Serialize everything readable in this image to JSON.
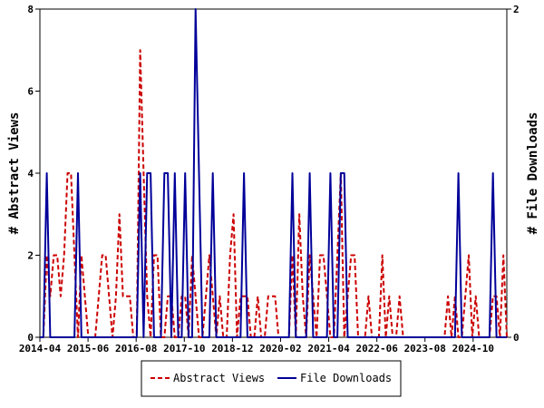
{
  "chart_data": {
    "type": "line",
    "xlabel": "",
    "ylabel_left": "# Abstract Views",
    "ylabel_right": "# File Downloads",
    "x_ticks": [
      "2014-04",
      "2015-06",
      "2016-08",
      "2017-10",
      "2018-12",
      "2020-02",
      "2021-04",
      "2022-06",
      "2023-08",
      "2024-10"
    ],
    "y_left": {
      "min": 0,
      "max": 8,
      "ticks": [
        "0",
        "2",
        "4",
        "6",
        "8"
      ]
    },
    "y_right": {
      "min": 0,
      "max": 2,
      "ticks": [
        "0",
        "2"
      ]
    },
    "x_range_months": [
      0,
      135
    ],
    "legend_position": "bottom-center",
    "grid": false,
    "series": [
      {
        "name": "Abstract Views",
        "axis": "left",
        "color": "#cc0000",
        "style": "dashed",
        "x": [
          0,
          1,
          2,
          3,
          4,
          5,
          6,
          7,
          8,
          9,
          10,
          11,
          12,
          13,
          14,
          15,
          16,
          17,
          18,
          19,
          20,
          21,
          22,
          23,
          24,
          25,
          26,
          27,
          28,
          29,
          30,
          31,
          32,
          33,
          34,
          35,
          36,
          37,
          38,
          39,
          40,
          41,
          42,
          43,
          44,
          45,
          46,
          47,
          48,
          49,
          50,
          51,
          52,
          53,
          54,
          55,
          56,
          57,
          58,
          59,
          60,
          61,
          62,
          63,
          64,
          65,
          66,
          67,
          68,
          69,
          70,
          71,
          72,
          73,
          74,
          75,
          76,
          77,
          78,
          79,
          80,
          81,
          82,
          83,
          84,
          85,
          86,
          87,
          88,
          89,
          90,
          91,
          92,
          93,
          94,
          95,
          96,
          97,
          98,
          99,
          100,
          101,
          102,
          103,
          104,
          105,
          106,
          107,
          108,
          109,
          110,
          111,
          112,
          113,
          114,
          115,
          116,
          117,
          118,
          119,
          120,
          121,
          122,
          123,
          124,
          125,
          126,
          127,
          128,
          129,
          130,
          131,
          132,
          133,
          134,
          135
        ],
        "values": [
          0,
          0,
          2,
          1,
          2,
          2,
          1,
          2,
          4,
          4,
          2,
          0,
          2,
          1,
          0,
          0,
          0,
          1,
          2,
          2,
          1,
          0,
          1,
          3,
          1,
          1,
          1,
          0,
          0,
          7,
          4,
          1,
          0,
          2,
          2,
          0,
          0,
          1,
          1,
          0,
          0,
          1,
          1,
          0,
          2,
          1,
          0,
          0,
          1,
          2,
          1,
          0,
          1,
          0,
          0,
          2,
          3,
          0,
          1,
          1,
          1,
          0,
          0,
          1,
          0,
          0,
          1,
          1,
          1,
          0,
          0,
          0,
          0,
          2,
          0,
          3,
          1,
          0,
          2,
          1,
          0,
          2,
          2,
          1,
          0,
          0,
          2,
          4,
          0,
          1,
          2,
          2,
          0,
          0,
          0,
          1,
          0,
          0,
          0,
          2,
          0,
          1,
          0,
          0,
          1,
          0,
          0,
          0,
          0,
          0,
          0,
          0,
          0,
          0,
          0,
          0,
          0,
          0,
          1,
          0,
          1,
          0,
          0,
          1,
          2,
          0,
          1,
          0,
          0,
          0,
          0,
          1,
          1,
          0,
          2,
          0
        ]
      },
      {
        "name": "File Downloads",
        "axis": "right",
        "color": "#000099",
        "style": "solid",
        "x": [
          0,
          1,
          2,
          3,
          4,
          5,
          6,
          7,
          8,
          9,
          10,
          11,
          12,
          13,
          14,
          15,
          16,
          17,
          18,
          19,
          20,
          21,
          22,
          23,
          24,
          25,
          26,
          27,
          28,
          29,
          30,
          31,
          32,
          33,
          34,
          35,
          36,
          37,
          38,
          39,
          40,
          41,
          42,
          43,
          44,
          45,
          46,
          47,
          48,
          49,
          50,
          51,
          52,
          53,
          54,
          55,
          56,
          57,
          58,
          59,
          60,
          61,
          62,
          63,
          64,
          65,
          66,
          67,
          68,
          69,
          70,
          71,
          72,
          73,
          74,
          75,
          76,
          77,
          78,
          79,
          80,
          81,
          82,
          83,
          84,
          85,
          86,
          87,
          88,
          89,
          90,
          91,
          92,
          93,
          94,
          95,
          96,
          97,
          98,
          99,
          100,
          101,
          102,
          103,
          104,
          105,
          106,
          107,
          108,
          109,
          110,
          111,
          112,
          113,
          114,
          115,
          116,
          117,
          118,
          119,
          120,
          121,
          122,
          123,
          124,
          125,
          126,
          127,
          128,
          129,
          130,
          131,
          132,
          133,
          134,
          135
        ],
        "values": [
          0,
          0,
          1,
          0,
          0,
          0,
          0,
          0,
          0,
          0,
          0,
          1,
          0,
          0,
          0,
          0,
          0,
          0,
          0,
          0,
          0,
          0,
          0,
          0,
          0,
          0,
          0,
          0,
          0,
          1,
          0,
          1,
          1,
          0,
          0,
          0,
          1,
          1,
          0,
          1,
          0,
          0,
          1,
          0,
          0,
          2,
          1,
          0,
          0,
          0,
          1,
          0,
          0,
          0,
          0,
          0,
          0,
          0,
          0,
          1,
          0,
          0,
          0,
          0,
          0,
          0,
          0,
          0,
          0,
          0,
          0,
          0,
          0,
          1,
          0,
          0,
          0,
          0,
          1,
          0,
          0,
          0,
          0,
          0,
          1,
          0,
          0,
          1,
          1,
          0,
          0,
          0,
          0,
          0,
          0,
          0,
          0,
          0,
          0,
          0,
          0,
          0,
          0,
          0,
          0,
          0,
          0,
          0,
          0,
          0,
          0,
          0,
          0,
          0,
          0,
          0,
          0,
          0,
          0,
          0,
          0,
          1,
          0,
          0,
          0,
          0,
          0,
          0,
          0,
          0,
          0,
          1,
          0,
          0,
          0,
          0
        ]
      }
    ]
  }
}
